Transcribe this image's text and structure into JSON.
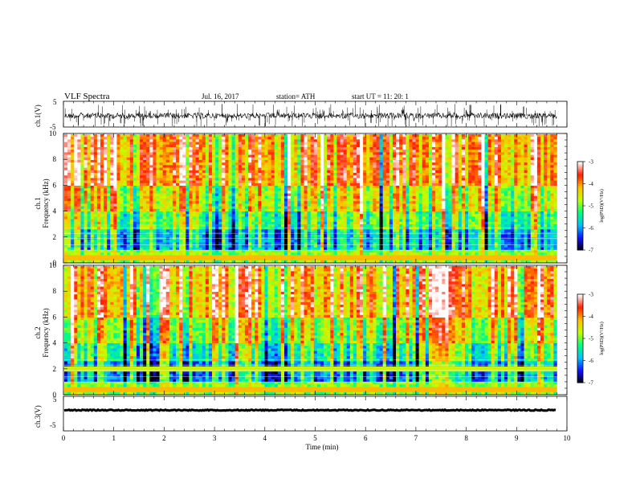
{
  "header": {
    "title": "VLF  Spectra",
    "date": "Jul.  16,  2017",
    "station": "station= ATH",
    "start_ut": "start  UT  =     11: 20: 1"
  },
  "chart_data": [
    {
      "type": "line",
      "name": "ch1-waveform",
      "ylabel": "ch.1(V)",
      "ylim": [
        -5,
        5
      ],
      "yticks": [
        "5",
        "-5"
      ],
      "xlim": [
        0,
        10
      ],
      "description": "noisy waveform centered near 0 V with impulsive spikes"
    },
    {
      "type": "heatmap",
      "name": "ch1-spectrogram",
      "ylabel": "ch.1\nFrequency  (kHz)",
      "ylabel_line1": "ch.1",
      "ylabel_line2": "Frequency  (kHz)",
      "ylim": [
        0,
        10
      ],
      "yticks": [
        "0",
        "2",
        "4",
        "6",
        "8",
        "10"
      ],
      "xlim": [
        0,
        9.8
      ],
      "colorbar": {
        "label": "log(PSD)(V²/Hz)",
        "range": [
          -7,
          -3
        ],
        "ticks": [
          "-3",
          "-4",
          "-5",
          "-6",
          "-7"
        ]
      }
    },
    {
      "type": "heatmap",
      "name": "ch2-spectrogram",
      "ylabel_line1": "ch.2",
      "ylabel_line2": "Frequency  (kHz)",
      "ylim": [
        0,
        10
      ],
      "yticks": [
        "0",
        "2",
        "4",
        "6",
        "8",
        "10"
      ],
      "xlim": [
        0,
        9.8
      ],
      "colorbar": {
        "label": "log(PSD)(V²/Hz)",
        "range": [
          -7,
          -3
        ],
        "ticks": [
          "-3",
          "-4",
          "-5",
          "-6",
          "-7"
        ]
      }
    },
    {
      "type": "line",
      "name": "ch3-waveform",
      "ylabel": "ch.3(V)",
      "ylim": [
        -5,
        5
      ],
      "yticks": [
        "5",
        "-5"
      ],
      "xlim": [
        0,
        10
      ],
      "description": "thick nearly flat trace near -1 V"
    }
  ],
  "xaxis": {
    "label": "Time  (min)",
    "ticks": [
      "0",
      "1",
      "2",
      "3",
      "4",
      "5",
      "6",
      "7",
      "8",
      "9",
      "10"
    ],
    "range": [
      0,
      10
    ]
  },
  "colors": {
    "colormap": [
      "#000000",
      "#1010ff",
      "#00c0ff",
      "#00ff80",
      "#c0ff00",
      "#ffc000",
      "#ff2000",
      "#ffffff"
    ]
  }
}
